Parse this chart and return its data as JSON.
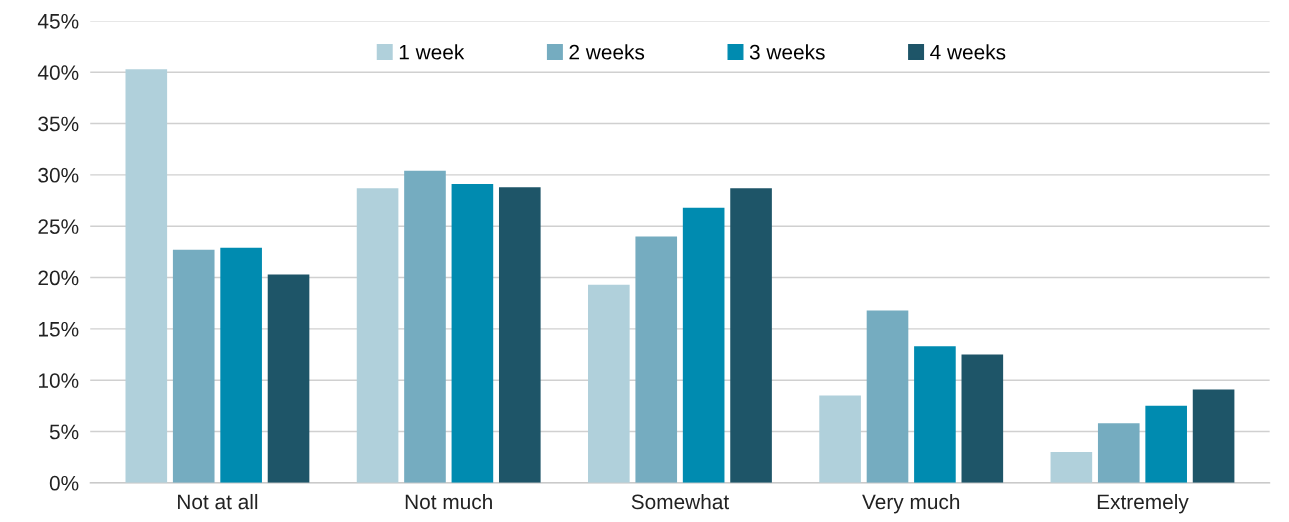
{
  "chart_data": {
    "type": "bar",
    "categories": [
      "Not at all",
      "Not much",
      "Somewhat",
      "Very much",
      "Extremely"
    ],
    "series": [
      {
        "name": "1 week",
        "color": "#b0d0db",
        "values": [
          40.3,
          28.7,
          19.3,
          8.5,
          3.0
        ]
      },
      {
        "name": "2 weeks",
        "color": "#75acc0",
        "values": [
          22.7,
          30.4,
          24.0,
          16.8,
          5.8
        ]
      },
      {
        "name": "3 weeks",
        "color": "#008bb0",
        "values": [
          22.9,
          29.1,
          26.8,
          13.3,
          7.5
        ]
      },
      {
        "name": "4 weeks",
        "color": "#1e5568",
        "values": [
          20.3,
          28.8,
          28.7,
          12.5,
          9.1
        ]
      }
    ],
    "ylim": [
      0,
      45
    ],
    "yticks": [
      {
        "value": 0,
        "label": "0%"
      },
      {
        "value": 5,
        "label": "5%"
      },
      {
        "value": 10,
        "label": "10%"
      },
      {
        "value": 15,
        "label": "15%"
      },
      {
        "value": 20,
        "label": "20%"
      },
      {
        "value": 25,
        "label": "25%"
      },
      {
        "value": 30,
        "label": "30%"
      },
      {
        "value": 35,
        "label": "35%"
      },
      {
        "value": 40,
        "label": "40%"
      },
      {
        "value": 45,
        "label": "45%"
      }
    ],
    "grid": "y",
    "legend": "top"
  }
}
